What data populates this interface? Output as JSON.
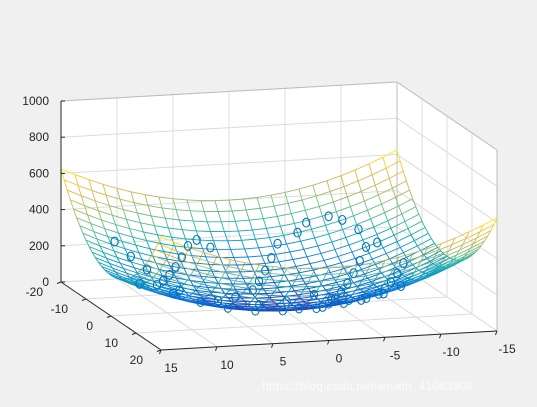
{
  "chart_data": {
    "type": "surface",
    "title": "",
    "xlabel": "",
    "ylabel": "",
    "zlabel": "",
    "surface": {
      "function": "z = x^2 + y^2",
      "x_range": [
        -15,
        15
      ],
      "y_range": [
        -20,
        20
      ],
      "grid_step": 1.25,
      "style": "colored mesh",
      "colormap": "parula"
    },
    "scatter": {
      "marker": "circle",
      "color": "#0072bd",
      "x": [
        12,
        11,
        10,
        9,
        8,
        12,
        10,
        9,
        8,
        7,
        6,
        5,
        4,
        3,
        9,
        7,
        5,
        3,
        1,
        0,
        -1,
        -2,
        -3,
        -5,
        -6,
        -8,
        -9,
        -10,
        -11,
        5,
        3,
        1,
        0,
        -2,
        -3,
        -4,
        -5,
        -6,
        -7,
        -8,
        -9,
        -10,
        -4,
        -6,
        -8,
        -9,
        -10,
        -11,
        -12,
        4,
        2,
        0,
        -2,
        -4,
        -6,
        -8,
        -10
      ],
      "y": [
        -12,
        -10,
        -8,
        -6,
        -4,
        -2,
        -4,
        -6,
        -8,
        -10,
        -12,
        -14,
        -15,
        -14,
        -2,
        0,
        -2,
        -4,
        -6,
        -8,
        -10,
        -12,
        -14,
        -15,
        -16,
        -16,
        -15,
        -13,
        -10,
        2,
        4,
        6,
        8,
        6,
        4,
        2,
        0,
        -2,
        -4,
        -6,
        -8,
        -10,
        8,
        6,
        4,
        2,
        0,
        -2,
        -4,
        10,
        12,
        14,
        12,
        10,
        8,
        6,
        4
      ]
    },
    "axes": {
      "x_ticks": [
        15,
        10,
        5,
        0,
        -5,
        -10,
        -15
      ],
      "y_ticks": [
        -20,
        -10,
        0,
        10,
        20
      ],
      "z_ticks": [
        0,
        200,
        400,
        600,
        800,
        1000
      ],
      "x_limits": [
        -15,
        15
      ],
      "y_limits": [
        -20,
        20
      ],
      "z_limits": [
        0,
        1000
      ],
      "grid": true,
      "box": true
    },
    "view": {
      "azimuth": 110,
      "elevation": 28
    }
  },
  "watermark": "https://blog.csdn.net/weixin_41083808"
}
